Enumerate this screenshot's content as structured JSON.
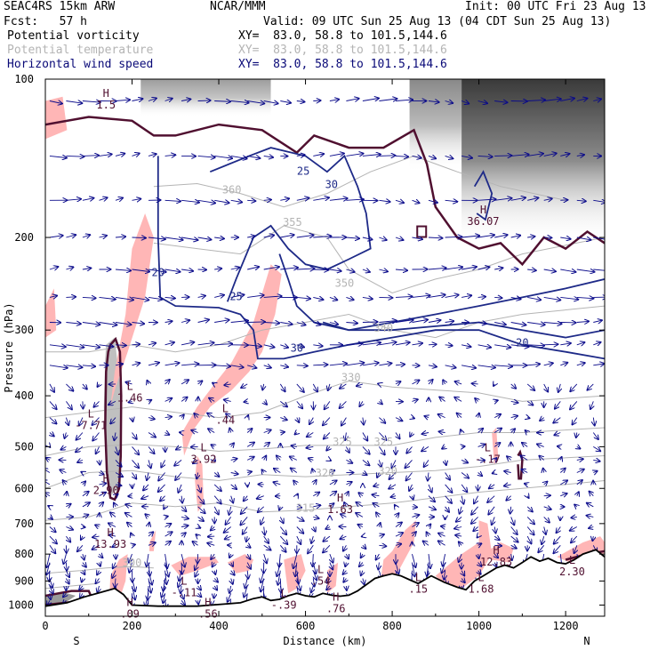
{
  "header": {
    "model": "SEAC4RS 15km ARW",
    "center": "NCAR/MMM",
    "init": "Init: 00 UTC Fri 23 Aug 13",
    "fcst": "Fcst:   57 h",
    "valid": "Valid: 09 UTC Sun 25 Aug 13 (04 CDT Sun 25 Aug 13)",
    "fields": [
      {
        "name": "Potential vorticity",
        "xy": "XY=  83.0, 58.8 to 101.5,144.6",
        "color": "#000000"
      },
      {
        "name": "Potential temperature",
        "xy": "XY=  83.0, 58.8 to 101.5,144.6",
        "color": "#b4b4b4"
      },
      {
        "name": "Horizontal wind speed",
        "xy": "XY=  83.0, 58.8 to 101.5,144.6",
        "color": "#0a0a78"
      }
    ]
  },
  "chart_data": {
    "type": "cross-section",
    "xlabel": "Distance (km)",
    "ylabel": "Pressure (hPa)",
    "xlim": [
      0,
      1290
    ],
    "ylim": [
      1050,
      100
    ],
    "y_scale": "log",
    "x_ticks": [
      "0",
      "200",
      "400",
      "600",
      "800",
      "1000",
      "1200"
    ],
    "y_ticks": [
      "100",
      "200",
      "300",
      "400",
      "500",
      "600",
      "700",
      "800",
      "900",
      "1000"
    ],
    "x_end_labels": {
      "left": "S",
      "right": "N"
    },
    "terrain": [
      [
        0,
        1005
      ],
      [
        50,
        990
      ],
      [
        90,
        965
      ],
      [
        120,
        950
      ],
      [
        160,
        930
      ],
      [
        180,
        955
      ],
      [
        200,
        1000
      ],
      [
        260,
        1005
      ],
      [
        350,
        1005
      ],
      [
        450,
        990
      ],
      [
        480,
        972
      ],
      [
        500,
        965
      ],
      [
        520,
        980
      ],
      [
        540,
        975
      ],
      [
        560,
        960
      ],
      [
        580,
        950
      ],
      [
        600,
        960
      ],
      [
        620,
        965
      ],
      [
        640,
        950
      ],
      [
        660,
        958
      ],
      [
        680,
        962
      ],
      [
        700,
        958
      ],
      [
        720,
        940
      ],
      [
        740,
        915
      ],
      [
        760,
        890
      ],
      [
        780,
        880
      ],
      [
        800,
        872
      ],
      [
        820,
        880
      ],
      [
        840,
        895
      ],
      [
        860,
        910
      ],
      [
        880,
        890
      ],
      [
        890,
        880
      ],
      [
        920,
        905
      ],
      [
        950,
        925
      ],
      [
        970,
        935
      ],
      [
        990,
        900
      ],
      [
        1010,
        880
      ],
      [
        1040,
        850
      ],
      [
        1060,
        840
      ],
      [
        1080,
        850
      ],
      [
        1100,
        830
      ],
      [
        1120,
        810
      ],
      [
        1140,
        825
      ],
      [
        1160,
        815
      ],
      [
        1180,
        830
      ],
      [
        1200,
        835
      ],
      [
        1220,
        820
      ],
      [
        1240,
        800
      ],
      [
        1270,
        785
      ],
      [
        1290,
        810
      ]
    ],
    "theta_contours": [
      {
        "label": "315",
        "x": 600,
        "y": 665
      },
      {
        "label": "320",
        "x": 645,
        "y": 570
      },
      {
        "label": "320",
        "x": 790,
        "y": 565
      },
      {
        "label": "325",
        "x": 685,
        "y": 497
      },
      {
        "label": "325",
        "x": 780,
        "y": 497
      },
      {
        "label": "330",
        "x": 705,
        "y": 375
      },
      {
        "label": "340",
        "x": 780,
        "y": 302
      },
      {
        "label": "350",
        "x": 690,
        "y": 248
      },
      {
        "label": "355",
        "x": 570,
        "y": 190
      },
      {
        "label": "360",
        "x": 430,
        "y": 165
      },
      {
        "label": "300",
        "x": 200,
        "y": 845
      }
    ],
    "wind_contours": [
      {
        "label": "20",
        "x": 260,
        "y": 237
      },
      {
        "label": "25",
        "x": 440,
        "y": 263
      },
      {
        "label": "25",
        "x": 595,
        "y": 152
      },
      {
        "label": "30",
        "x": 660,
        "y": 161
      },
      {
        "label": "30",
        "x": 580,
        "y": 330
      },
      {
        "label": "20",
        "x": 1100,
        "y": 322
      }
    ],
    "extrema": [
      {
        "letter": "L",
        "value": "1.46",
        "x": 195,
        "y": 390
      },
      {
        "letter": "L",
        "value": "-7.71",
        "x": 105,
        "y": 440
      },
      {
        "letter": "L",
        "value": ".44",
        "x": 415,
        "y": 430
      },
      {
        "letter": "L",
        "value": "3.92",
        "x": 365,
        "y": 510
      },
      {
        "letter": "H",
        "value": "2.90",
        "x": 140,
        "y": 585
      },
      {
        "letter": "H",
        "value": "1.63",
        "x": 680,
        "y": 635
      },
      {
        "letter": "L",
        "value": "-.17",
        "x": 1020,
        "y": 510
      },
      {
        "letter": "H",
        "value": "13.93",
        "x": 150,
        "y": 740
      },
      {
        "letter": "H",
        "value": "12.83",
        "x": 1040,
        "y": 800
      },
      {
        "letter": "L",
        "value": "2.30",
        "x": 1215,
        "y": 835
      },
      {
        "letter": "L",
        "value": ".54",
        "x": 635,
        "y": 870
      },
      {
        "letter": "L",
        "value": "-.11",
        "x": 320,
        "y": 915
      },
      {
        "letter": "L",
        "value": "1.68",
        "x": 1005,
        "y": 900
      },
      {
        "letter": "L",
        "value": ".15",
        "x": 860,
        "y": 900
      },
      {
        "letter": "L",
        "value": "-.39",
        "x": 550,
        "y": 965
      },
      {
        "letter": "H",
        "value": ".76",
        "x": 670,
        "y": 980
      },
      {
        "letter": "H",
        "value": ".09",
        "x": 195,
        "y": 1005
      },
      {
        "letter": "H",
        "value": ".56",
        "x": 375,
        "y": 1005
      },
      {
        "letter": "H",
        "value": "36.07",
        "x": 1010,
        "y": 180
      },
      {
        "letter": "H",
        "value": "1.5",
        "x": 140,
        "y": 108
      }
    ],
    "colors": {
      "pv_fill_low": "#ffb6b6",
      "pv_contour": "#501030",
      "wind_contour": "#1e2a88",
      "wind_vectors": "#0a0a8a",
      "theta_contour": "#b4b4b4",
      "terrain_line": "#000000"
    }
  }
}
